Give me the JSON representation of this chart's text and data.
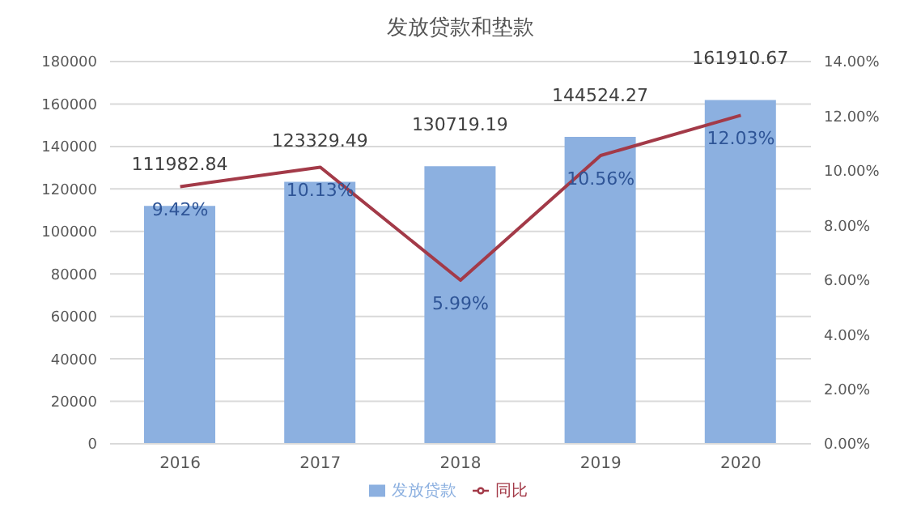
{
  "chart_data": {
    "type": "bar",
    "title": "发放贷款和垫款",
    "categories": [
      "2016",
      "2017",
      "2018",
      "2019",
      "2020"
    ],
    "series": [
      {
        "name": "发放贷款",
        "color": "#8cb0e0",
        "values": [
          111982.84,
          123329.49,
          130719.19,
          144524.27,
          161910.67
        ],
        "value_labels": [
          "111982.84",
          "123329.49",
          "130719.19",
          "144524.27",
          "161910.67"
        ]
      },
      {
        "name": "同比",
        "type": "line",
        "axis": "y2",
        "color": "#a33a48",
        "values": [
          9.42,
          10.13,
          5.99,
          10.56,
          12.03
        ],
        "value_labels": [
          "9.42%",
          "10.13%",
          "5.99%",
          "10.56%",
          "12.03%"
        ]
      }
    ],
    "ylim": [
      0,
      180000
    ],
    "yticks": [
      0,
      20000,
      40000,
      60000,
      80000,
      100000,
      120000,
      140000,
      160000,
      180000
    ],
    "y2lim": [
      0,
      14
    ],
    "y2ticks": [
      {
        "value": 0,
        "label": "0.00%"
      },
      {
        "value": 2,
        "label": "2.00%"
      },
      {
        "value": 4,
        "label": "4.00%"
      },
      {
        "value": 6,
        "label": "6.00%"
      },
      {
        "value": 8,
        "label": "8.00%"
      },
      {
        "value": 10,
        "label": "10.00%"
      },
      {
        "value": 12,
        "label": "12.00%"
      },
      {
        "value": 14,
        "label": "14.00%"
      }
    ],
    "grid": "y",
    "legend": "bottom",
    "marker": "none",
    "line_style": "solid"
  }
}
